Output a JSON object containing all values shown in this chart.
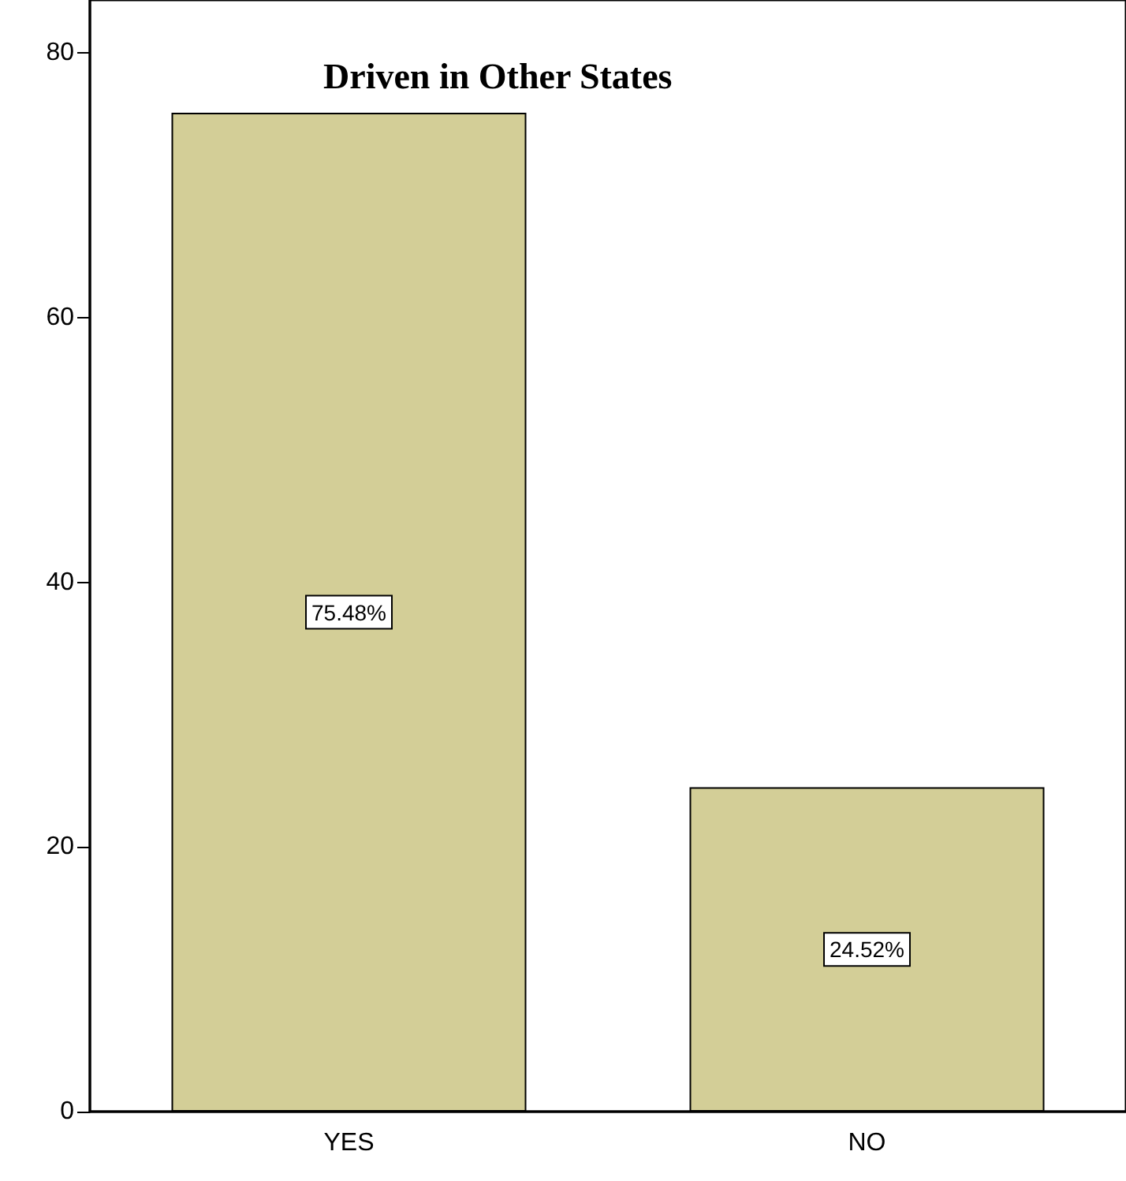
{
  "chart_data": {
    "type": "bar",
    "title": "Driven in Other States",
    "categories": [
      "YES",
      "NO"
    ],
    "values": [
      75.48,
      24.52
    ],
    "value_labels": [
      "75.48%",
      "24.52%"
    ],
    "color": "#d3ce97",
    "ylim": [
      0,
      84
    ],
    "yticks": [
      0,
      20,
      40,
      60,
      80
    ],
    "grid": false
  }
}
